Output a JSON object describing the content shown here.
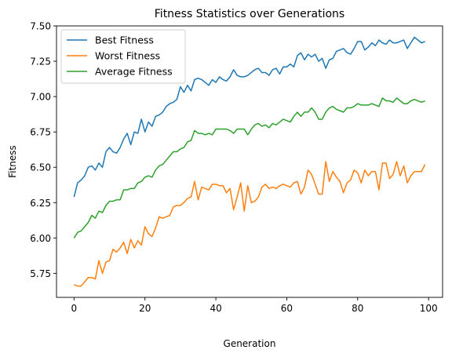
{
  "chart_data": {
    "type": "line",
    "title": "Fitness Statistics over Generations",
    "xlabel": "Generation",
    "ylabel": "Fitness",
    "xlim": [
      -4.95,
      103.95
    ],
    "ylim": [
      5.58,
      7.5
    ],
    "xticks": [
      0,
      20,
      40,
      60,
      80,
      100
    ],
    "yticks": [
      5.75,
      6.0,
      6.25,
      6.5,
      6.75,
      7.0,
      7.25,
      7.5
    ],
    "ytick_labels": [
      "5.75",
      "6.00",
      "6.25",
      "6.50",
      "6.75",
      "7.00",
      "7.25",
      "7.50"
    ],
    "grid": false,
    "legend_position": "upper-left",
    "series": [
      {
        "name": "Best Fitness",
        "color": "#1f77b4",
        "values": [
          6.29,
          6.39,
          6.41,
          6.44,
          6.5,
          6.51,
          6.48,
          6.53,
          6.5,
          6.61,
          6.64,
          6.61,
          6.6,
          6.64,
          6.7,
          6.74,
          6.66,
          6.75,
          6.74,
          6.84,
          6.75,
          6.82,
          6.79,
          6.86,
          6.87,
          6.89,
          6.93,
          6.95,
          6.96,
          6.98,
          7.07,
          7.03,
          7.08,
          7.04,
          7.12,
          7.13,
          7.12,
          7.1,
          7.08,
          7.12,
          7.1,
          7.14,
          7.12,
          7.11,
          7.14,
          7.19,
          7.15,
          7.14,
          7.14,
          7.15,
          7.17,
          7.19,
          7.2,
          7.17,
          7.17,
          7.15,
          7.19,
          7.2,
          7.16,
          7.21,
          7.21,
          7.23,
          7.21,
          7.29,
          7.31,
          7.26,
          7.3,
          7.28,
          7.3,
          7.25,
          7.27,
          7.2,
          7.26,
          7.27,
          7.32,
          7.33,
          7.34,
          7.31,
          7.3,
          7.34,
          7.39,
          7.39,
          7.33,
          7.35,
          7.38,
          7.36,
          7.4,
          7.38,
          7.37,
          7.4,
          7.38,
          7.38,
          7.39,
          7.4,
          7.34,
          7.38,
          7.42,
          7.4,
          7.38,
          7.39
        ]
      },
      {
        "name": "Worst Fitness",
        "color": "#ff7f0e",
        "values": [
          5.67,
          5.66,
          5.66,
          5.69,
          5.72,
          5.72,
          5.71,
          5.84,
          5.75,
          5.83,
          5.84,
          5.92,
          5.9,
          5.93,
          5.97,
          5.89,
          5.99,
          5.93,
          5.98,
          5.95,
          6.08,
          6.03,
          6.01,
          6.07,
          6.15,
          6.14,
          6.15,
          6.16,
          6.22,
          6.23,
          6.23,
          6.25,
          6.28,
          6.29,
          6.4,
          6.27,
          6.36,
          6.35,
          6.34,
          6.38,
          6.38,
          6.37,
          6.37,
          6.32,
          6.35,
          6.2,
          6.29,
          6.39,
          6.19,
          6.37,
          6.25,
          6.26,
          6.29,
          6.36,
          6.38,
          6.35,
          6.36,
          6.35,
          6.37,
          6.38,
          6.37,
          6.36,
          6.39,
          6.4,
          6.31,
          6.36,
          6.48,
          6.45,
          6.38,
          6.31,
          6.31,
          6.54,
          6.4,
          6.47,
          6.43,
          6.4,
          6.32,
          6.39,
          6.41,
          6.48,
          6.46,
          6.39,
          6.48,
          6.44,
          6.47,
          6.47,
          6.34,
          6.53,
          6.53,
          6.42,
          6.45,
          6.54,
          6.44,
          6.51,
          6.39,
          6.44,
          6.47,
          6.47,
          6.47,
          6.52
        ]
      },
      {
        "name": "Average Fitness",
        "color": "#2ca02c",
        "values": [
          6.0,
          6.04,
          6.05,
          6.08,
          6.11,
          6.16,
          6.14,
          6.19,
          6.18,
          6.23,
          6.26,
          6.26,
          6.27,
          6.27,
          6.34,
          6.34,
          6.35,
          6.35,
          6.39,
          6.4,
          6.43,
          6.44,
          6.43,
          6.48,
          6.51,
          6.52,
          6.55,
          6.58,
          6.61,
          6.61,
          6.63,
          6.64,
          6.68,
          6.69,
          6.76,
          6.74,
          6.74,
          6.73,
          6.74,
          6.73,
          6.77,
          6.77,
          6.77,
          6.77,
          6.76,
          6.74,
          6.77,
          6.77,
          6.77,
          6.73,
          6.77,
          6.8,
          6.81,
          6.79,
          6.8,
          6.78,
          6.81,
          6.8,
          6.82,
          6.84,
          6.83,
          6.82,
          6.86,
          6.89,
          6.86,
          6.89,
          6.89,
          6.92,
          6.89,
          6.84,
          6.84,
          6.89,
          6.92,
          6.93,
          6.91,
          6.9,
          6.89,
          6.92,
          6.92,
          6.93,
          6.95,
          6.94,
          6.94,
          6.94,
          6.95,
          6.94,
          6.93,
          6.99,
          6.97,
          6.97,
          6.96,
          6.99,
          6.97,
          6.95,
          6.95,
          6.97,
          6.98,
          6.97,
          6.96,
          6.97
        ]
      }
    ]
  }
}
